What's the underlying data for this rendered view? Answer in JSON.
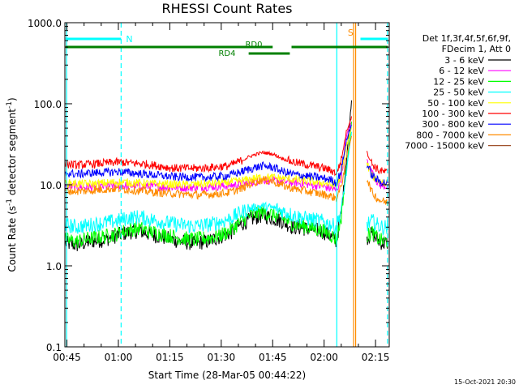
{
  "chart_data": {
    "type": "line",
    "title": "RHESSI Count Rates",
    "xlabel": "Start Time (28-Mar-05 00:44:22)",
    "ylabel_parts": {
      "main": "Count Rate (s",
      "sup": "-1",
      "rest": " detector segment",
      "sup2": "-1",
      "end": ")"
    },
    "ylog": true,
    "ylim": [
      0.1,
      1000.0
    ],
    "yticks": [
      0.1,
      1.0,
      10.0,
      100.0,
      1000.0
    ],
    "ytick_labels": [
      "0.1",
      "1.0",
      "10.0",
      "100.0",
      "1000.0"
    ],
    "xlim_min": [
      44.4,
      139.0
    ],
    "xticks_min": [
      45,
      60,
      75,
      90,
      105,
      120,
      135
    ],
    "xtick_labels": [
      "00:45",
      "01:00",
      "01:15",
      "01:30",
      "01:45",
      "02:00",
      "02:15"
    ],
    "legend_header": [
      "Det 1f,3f,4f,5f,6f,9f,",
      "FDecim 1, Att 0"
    ],
    "legend_position": "right",
    "series": [
      {
        "name": "3 - 6 keV",
        "color": "#000000",
        "min": [
          44.6,
          48,
          52,
          56,
          60,
          63,
          66,
          70,
          74,
          78,
          82,
          86,
          90,
          93,
          96,
          99,
          102,
          105,
          108,
          111,
          114,
          117,
          120,
          122,
          123.6,
          125,
          126.5,
          128,
          129.5,
          131,
          132.5,
          134,
          135.5,
          137,
          138.6
        ],
        "val": [
          1.9,
          1.8,
          2.0,
          2.1,
          2.4,
          2.6,
          2.7,
          2.4,
          2.2,
          2.0,
          1.9,
          2.0,
          2.3,
          2.6,
          3.3,
          3.8,
          4.2,
          3.9,
          3.5,
          3.0,
          2.9,
          2.8,
          2.6,
          2.3,
          2.0,
          4.5,
          20,
          110,
          null,
          null,
          2.2,
          2.5,
          2.1,
          1.9,
          1.9
        ]
      },
      {
        "name": "6 - 12 keV",
        "color": "#ff00ff",
        "min": [
          44.6,
          52,
          60,
          70,
          80,
          90,
          96,
          102,
          108,
          114,
          120,
          122,
          123.6,
          125,
          126.5,
          128,
          129.5,
          131,
          132.5,
          134,
          136,
          138.6
        ],
        "val": [
          9.5,
          9.3,
          9.8,
          9.5,
          9.2,
          9.6,
          10.2,
          11.5,
          11.0,
          10.3,
          9.5,
          9.0,
          8.5,
          12,
          40,
          60,
          null,
          null,
          20,
          14,
          10,
          9.5
        ]
      },
      {
        "name": "12 - 25 keV",
        "color": "#00ff00",
        "min": [
          44.6,
          48,
          52,
          56,
          60,
          63,
          66,
          70,
          74,
          78,
          82,
          86,
          90,
          93,
          96,
          99,
          102,
          105,
          108,
          111,
          114,
          117,
          120,
          122,
          123.6,
          125,
          126.5,
          128,
          129.5,
          131,
          132.5,
          134,
          135.5,
          137,
          138.6
        ],
        "val": [
          2.1,
          2.0,
          2.2,
          2.3,
          2.5,
          2.8,
          2.9,
          2.6,
          2.4,
          2.2,
          2.1,
          2.2,
          2.4,
          2.8,
          3.6,
          4.3,
          4.6,
          4.3,
          3.8,
          3.3,
          3.1,
          2.9,
          2.7,
          2.4,
          2.1,
          4.0,
          15,
          60,
          null,
          null,
          2.3,
          2.6,
          2.2,
          2.0,
          2.0
        ]
      },
      {
        "name": "25 - 50 keV",
        "color": "#00ffff",
        "min": [
          44.6,
          48,
          52,
          56,
          60,
          63,
          66,
          70,
          74,
          78,
          82,
          86,
          90,
          93,
          96,
          99,
          102,
          105,
          108,
          111,
          114,
          117,
          120,
          122,
          123.6,
          125,
          126.5,
          128,
          129.5,
          131,
          132.5,
          134,
          135.5,
          137,
          138.6
        ],
        "val": [
          3.2,
          3.0,
          3.2,
          3.4,
          3.6,
          3.9,
          4.0,
          3.7,
          3.4,
          3.2,
          3.1,
          3.2,
          3.5,
          3.9,
          4.6,
          5.2,
          5.5,
          5.2,
          4.7,
          4.2,
          3.9,
          3.7,
          3.5,
          3.2,
          3.0,
          5.0,
          14,
          45,
          null,
          null,
          3.2,
          3.6,
          3.2,
          3.0,
          3.0
        ]
      },
      {
        "name": "50 - 100 keV",
        "color": "#ffff00",
        "min": [
          44.6,
          52,
          60,
          70,
          80,
          90,
          96,
          102,
          108,
          114,
          120,
          122,
          123.6,
          125,
          126.5,
          128,
          129.5,
          131,
          132.5,
          134,
          136,
          138.6
        ],
        "val": [
          10.5,
          10.2,
          10.8,
          10.3,
          10.0,
          10.5,
          11.2,
          12.5,
          12.0,
          11.2,
          10.5,
          10.0,
          9.8,
          13,
          30,
          50,
          null,
          null,
          18,
          13,
          11,
          10.5
        ]
      },
      {
        "name": "100 - 300 keV",
        "color": "#ff0000",
        "min": [
          44.6,
          48,
          52,
          56,
          60,
          64,
          68,
          72,
          76,
          80,
          84,
          88,
          92,
          96,
          99,
          102,
          105,
          108,
          111,
          114,
          117,
          120,
          122,
          123.6,
          125,
          126.5,
          128,
          129.5,
          131,
          132.5,
          134,
          136,
          138.6
        ],
        "val": [
          18,
          17.5,
          18,
          18.5,
          19,
          18.5,
          18,
          17,
          16,
          16,
          16,
          16.5,
          17,
          20,
          23,
          25,
          24,
          21,
          19,
          18,
          17,
          16,
          15,
          14,
          20,
          45,
          70,
          null,
          null,
          25,
          18,
          15,
          14
        ]
      },
      {
        "name": "300 - 800 keV",
        "color": "#0000ff",
        "min": [
          44.6,
          48,
          52,
          56,
          60,
          64,
          68,
          72,
          76,
          80,
          84,
          88,
          92,
          96,
          99,
          102,
          105,
          108,
          111,
          114,
          117,
          120,
          122,
          123.6,
          125,
          126.5,
          128,
          129.5,
          131,
          132.5,
          134,
          136,
          138.6
        ],
        "val": [
          14,
          13.5,
          14,
          14.2,
          14.5,
          14,
          13.5,
          13,
          12.5,
          12.5,
          12.3,
          12.5,
          13,
          14.5,
          16,
          17,
          16.5,
          14.5,
          13.5,
          13,
          12.5,
          12,
          11.5,
          10.5,
          15,
          35,
          55,
          null,
          null,
          18,
          13,
          11,
          10.5
        ]
      },
      {
        "name": "800 - 7000 keV",
        "color": "#ff8c00",
        "min": [
          44.6,
          48,
          52,
          56,
          60,
          64,
          68,
          72,
          76,
          80,
          84,
          88,
          92,
          96,
          99,
          102,
          105,
          108,
          111,
          114,
          117,
          120,
          122,
          123.6,
          125,
          126.5,
          128,
          129.5,
          131,
          132.5,
          134,
          136,
          138.6
        ],
        "val": [
          8.5,
          8.3,
          8.5,
          8.8,
          9.0,
          8.6,
          8.3,
          8.0,
          7.8,
          7.6,
          7.5,
          7.7,
          8.0,
          9.0,
          10.5,
          11.5,
          11.0,
          9.8,
          9.0,
          8.5,
          8.0,
          7.6,
          7.2,
          6.8,
          9.5,
          22,
          40,
          null,
          null,
          12,
          8,
          6.5,
          6.0
        ]
      },
      {
        "name": "7000 - 15000 keV",
        "color": "#a0522d",
        "min": [],
        "val": []
      }
    ],
    "n_bar": {
      "label": "N",
      "start": 44.6,
      "end": 60.8
    },
    "s_bar": {
      "label": "S",
      "start": 123.6,
      "end": 138.6
    },
    "attenuator_bars": {
      "rd0_label": "RD0",
      "rd4_label": "RD4",
      "rd0_segments": [
        [
          44.6,
          105.0
        ],
        [
          110.5,
          138.6
        ]
      ],
      "rd4_segments": [
        [
          98.0,
          110.0
        ]
      ]
    },
    "vlines_cyan_solid": [
      44.9,
      123.7
    ],
    "vlines_cyan_dashed": [
      60.8,
      138.5
    ],
    "vlines_orange": [
      128.6,
      129.2
    ],
    "grid": false
  },
  "timestamp": "15-Oct-2021 20:30"
}
